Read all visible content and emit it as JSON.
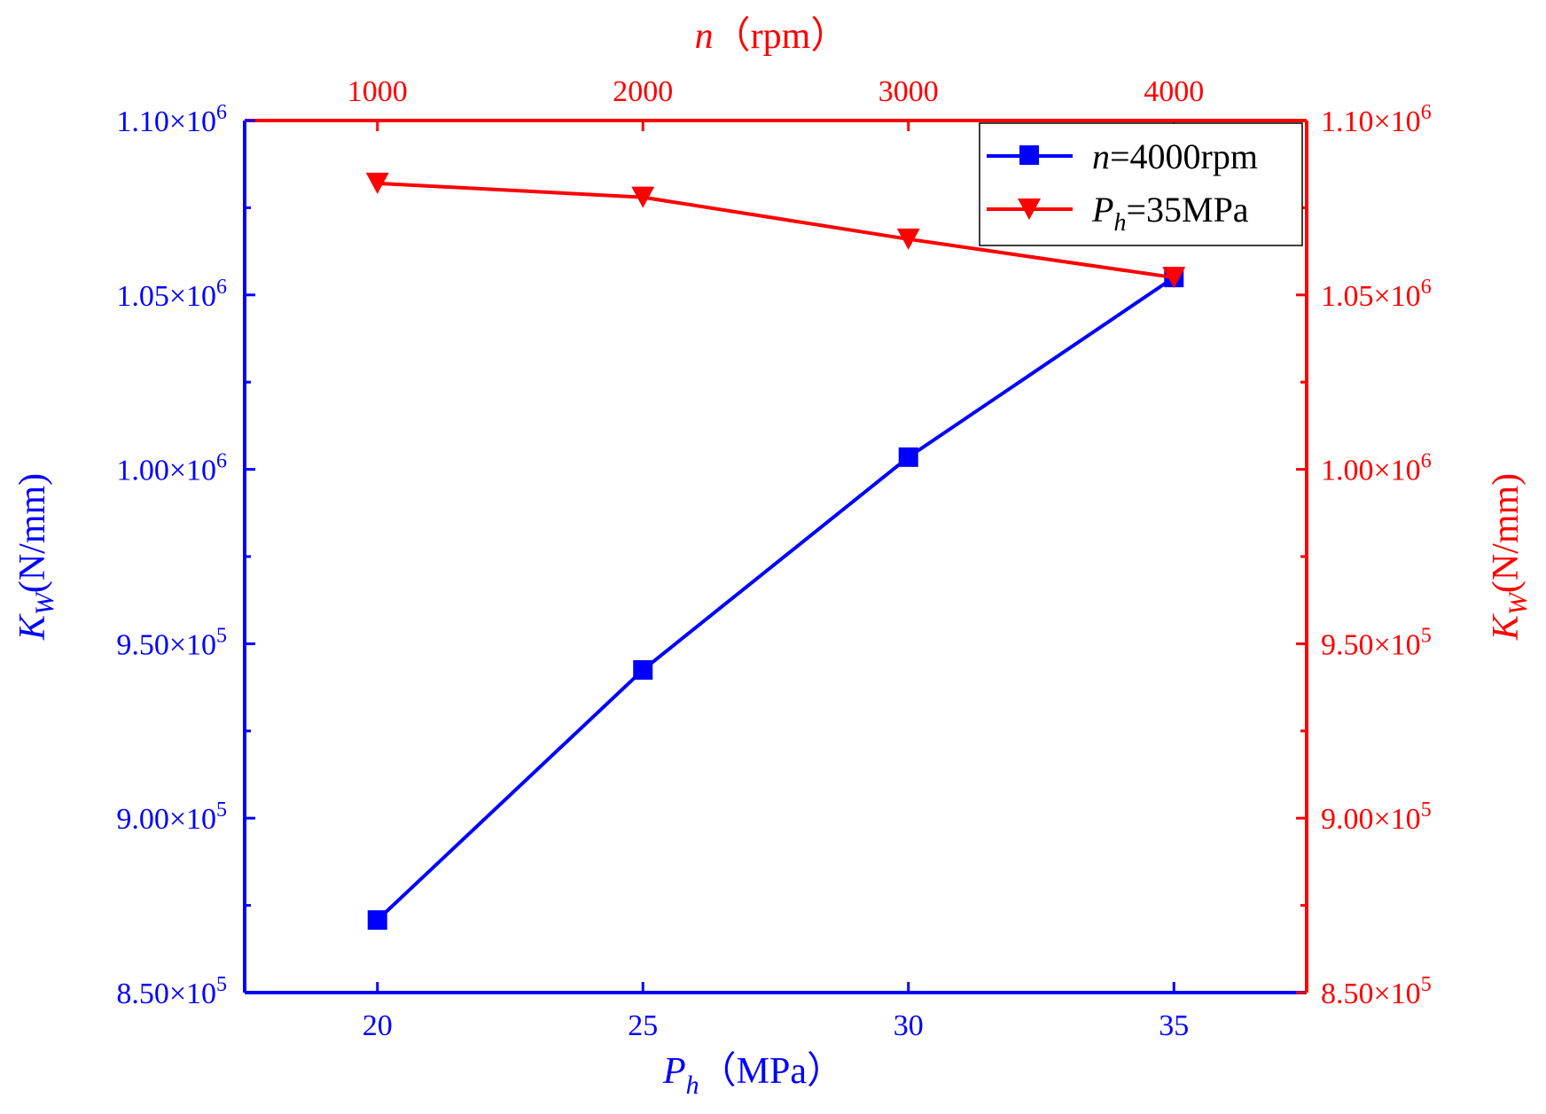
{
  "chart_data": {
    "type": "line",
    "colors": {
      "blue": "#0000ff",
      "red": "#ff0000"
    },
    "bottom_axis": {
      "label_var": "P",
      "label_sub": "h",
      "label_unit": "（MPa）",
      "range": [
        17.5,
        37.5
      ],
      "ticks": [
        20,
        25,
        30,
        35
      ],
      "tick_labels": [
        "20",
        "25",
        "30",
        "35"
      ]
    },
    "top_axis": {
      "label_var": "n",
      "label_unit": "（rpm）",
      "range": [
        500,
        4500
      ],
      "ticks": [
        1000,
        2000,
        3000,
        4000
      ],
      "tick_labels": [
        "1000",
        "2000",
        "3000",
        "4000"
      ]
    },
    "left_axis": {
      "label_var": "K",
      "label_sub": "W",
      "label_unit": "(N/mm)",
      "range": [
        850000,
        1100000
      ],
      "ticks": [
        850000,
        900000,
        950000,
        1000000,
        1050000,
        1100000
      ],
      "tick_mantissas": [
        "8.50",
        "9.00",
        "9.50",
        "1.00",
        "1.05",
        "1.10"
      ],
      "tick_exponents": [
        "5",
        "5",
        "5",
        "6",
        "6",
        "6"
      ],
      "times_symbol": "×10"
    },
    "right_axis": {
      "label_var": "K",
      "label_sub": "W",
      "label_unit": "(N/mm)",
      "range": [
        850000,
        1100000
      ],
      "ticks": [
        850000,
        900000,
        950000,
        1000000,
        1050000,
        1100000
      ],
      "tick_mantissas": [
        "8.50",
        "9.00",
        "9.50",
        "1.00",
        "1.05",
        "1.10"
      ],
      "tick_exponents": [
        "5",
        "5",
        "5",
        "6",
        "6",
        "6"
      ],
      "times_symbol": "×10"
    },
    "series": [
      {
        "name": "n=4000rpm",
        "legend_var": "n",
        "legend_sub": "",
        "legend_rest": "=4000rpm",
        "axis": "bottom-left",
        "color": "#0000ff",
        "marker": "square",
        "x": [
          20,
          25,
          30,
          35
        ],
        "y": [
          870800,
          942500,
          1003500,
          1055000
        ]
      },
      {
        "name": "Ph=35MPa",
        "legend_var": "P",
        "legend_sub": "h",
        "legend_rest": "=35MPa",
        "axis": "top-right",
        "color": "#ff0000",
        "marker": "triangle-down",
        "x": [
          1000,
          2000,
          3000,
          4000
        ],
        "y": [
          1082000,
          1078000,
          1066000,
          1055000
        ]
      }
    ],
    "legend_position": "top-right"
  }
}
